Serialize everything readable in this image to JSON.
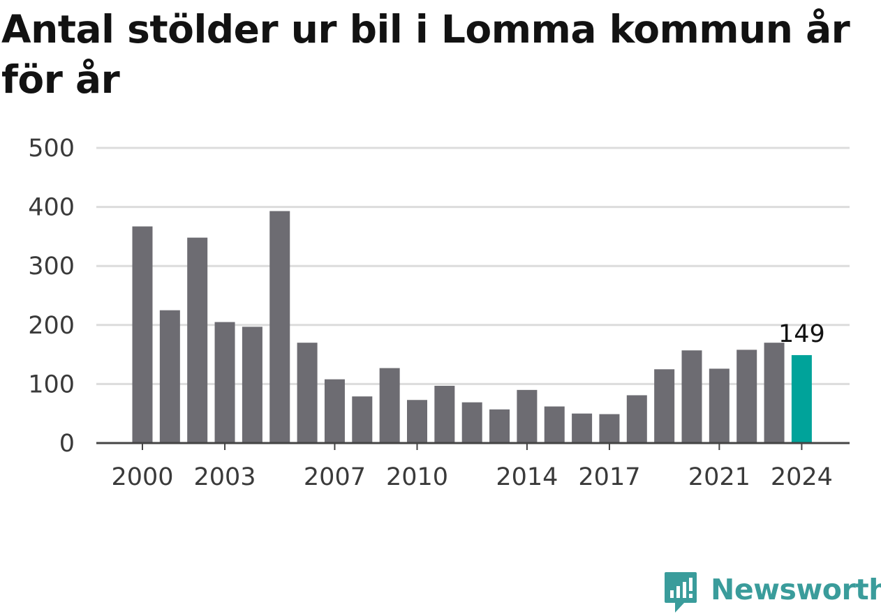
{
  "title": "Antal stölder ur bil i Lomma kommun år för år",
  "brand": {
    "name": "Newsworthy",
    "color": "#3a9c9b"
  },
  "colors": {
    "bar": "#6d6c72",
    "highlight": "#00a39a",
    "grid": "#dcdcdc",
    "axis": "#444444"
  },
  "chart_data": {
    "type": "bar",
    "categories": [
      "2000",
      "2001",
      "2002",
      "2003",
      "2004",
      "2005",
      "2006",
      "2007",
      "2008",
      "2009",
      "2010",
      "2011",
      "2012",
      "2013",
      "2014",
      "2015",
      "2016",
      "2017",
      "2018",
      "2019",
      "2020",
      "2021",
      "2022",
      "2023",
      "2024"
    ],
    "values": [
      367,
      225,
      348,
      205,
      197,
      393,
      170,
      108,
      79,
      127,
      73,
      97,
      69,
      57,
      90,
      62,
      50,
      49,
      81,
      125,
      157,
      126,
      158,
      170,
      149
    ],
    "x_tick_labels": [
      "2000",
      "2003",
      "2007",
      "2010",
      "2014",
      "2017",
      "2021",
      "2024"
    ],
    "y_ticks": [
      0,
      100,
      200,
      300,
      400,
      500
    ],
    "ylim": [
      0,
      500
    ],
    "highlight_category": "2024",
    "value_label": "149",
    "grid": true,
    "xlabel": "",
    "ylabel": ""
  }
}
